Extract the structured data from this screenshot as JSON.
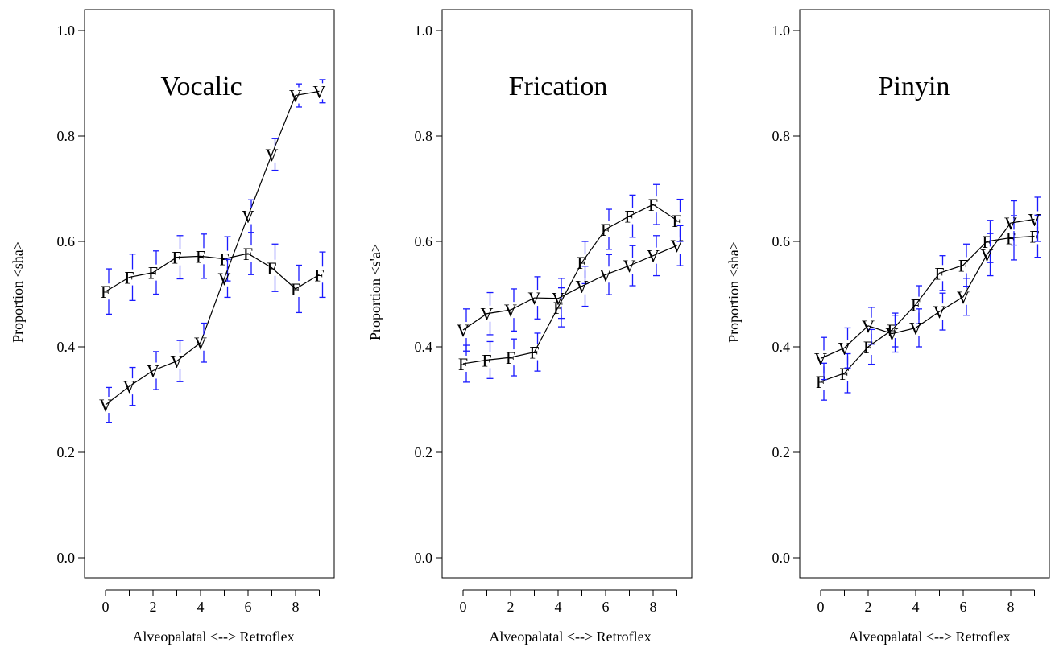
{
  "chart_data": [
    {
      "type": "line",
      "title": "Vocalic",
      "xlabel": "Alveopalatal <--> Retroflex",
      "ylabel": "Proportion <sha>",
      "x": [
        0,
        1,
        2,
        3,
        4,
        5,
        6,
        7,
        8,
        9
      ],
      "xticks": [
        "0",
        "2",
        "4",
        "6",
        "8"
      ],
      "yticks": [
        "0.0",
        "0.2",
        "0.4",
        "0.6",
        "0.8",
        "1.0"
      ],
      "ylim": [
        0,
        1
      ],
      "grid": false,
      "series": [
        {
          "name": "F",
          "marker": "F",
          "values": [
            0.505,
            0.532,
            0.541,
            0.57,
            0.572,
            0.567,
            0.577,
            0.55,
            0.51,
            0.537
          ],
          "err": [
            0.043,
            0.044,
            0.041,
            0.041,
            0.042,
            0.042,
            0.04,
            0.045,
            0.045,
            0.043
          ]
        },
        {
          "name": "V",
          "marker": "V",
          "values": [
            0.29,
            0.325,
            0.355,
            0.373,
            0.408,
            0.53,
            0.648,
            0.765,
            0.877,
            0.885
          ],
          "err": [
            0.033,
            0.036,
            0.036,
            0.039,
            0.037,
            0.036,
            0.031,
            0.03,
            0.022,
            0.022
          ]
        }
      ]
    },
    {
      "type": "line",
      "title": "Frication",
      "xlabel": "Alveopalatal <--> Retroflex",
      "ylabel": "Proportion <s'a>",
      "x": [
        0,
        1,
        2,
        3,
        4,
        5,
        6,
        7,
        8,
        9
      ],
      "xticks": [
        "0",
        "2",
        "4",
        "6",
        "8"
      ],
      "yticks": [
        "0.0",
        "0.2",
        "0.4",
        "0.6",
        "0.8",
        "1.0"
      ],
      "ylim": [
        0,
        1
      ],
      "grid": false,
      "series": [
        {
          "name": "F",
          "marker": "F",
          "values": [
            0.368,
            0.375,
            0.38,
            0.39,
            0.475,
            0.56,
            0.623,
            0.648,
            0.67,
            0.64
          ],
          "err": [
            0.035,
            0.035,
            0.035,
            0.036,
            0.037,
            0.04,
            0.038,
            0.04,
            0.038,
            0.04
          ]
        },
        {
          "name": "V",
          "marker": "V",
          "values": [
            0.432,
            0.463,
            0.47,
            0.493,
            0.492,
            0.515,
            0.537,
            0.554,
            0.573,
            0.592
          ],
          "err": [
            0.04,
            0.04,
            0.04,
            0.04,
            0.038,
            0.038,
            0.038,
            0.038,
            0.038,
            0.038
          ]
        }
      ]
    },
    {
      "type": "line",
      "title": "Pinyin",
      "xlabel": "Alveopalatal <--> Retroflex",
      "ylabel": "Proportion <sha>",
      "x": [
        0,
        1,
        2,
        3,
        4,
        5,
        6,
        7,
        8,
        9
      ],
      "xticks": [
        "0",
        "2",
        "4",
        "6",
        "8"
      ],
      "yticks": [
        "0.0",
        "0.2",
        "0.4",
        "0.6",
        "0.8",
        "1.0"
      ],
      "ylim": [
        0,
        1
      ],
      "grid": false,
      "series": [
        {
          "name": "F",
          "marker": "F",
          "values": [
            0.334,
            0.35,
            0.4,
            0.432,
            0.48,
            0.54,
            0.555,
            0.6,
            0.607,
            0.61
          ],
          "err": [
            0.035,
            0.037,
            0.033,
            0.032,
            0.036,
            0.033,
            0.04,
            0.04,
            0.042,
            0.04
          ]
        },
        {
          "name": "V",
          "marker": "V",
          "values": [
            0.378,
            0.398,
            0.44,
            0.425,
            0.436,
            0.467,
            0.495,
            0.575,
            0.635,
            0.642
          ],
          "err": [
            0.04,
            0.038,
            0.035,
            0.035,
            0.036,
            0.035,
            0.035,
            0.04,
            0.042,
            0.042
          ]
        }
      ]
    }
  ]
}
